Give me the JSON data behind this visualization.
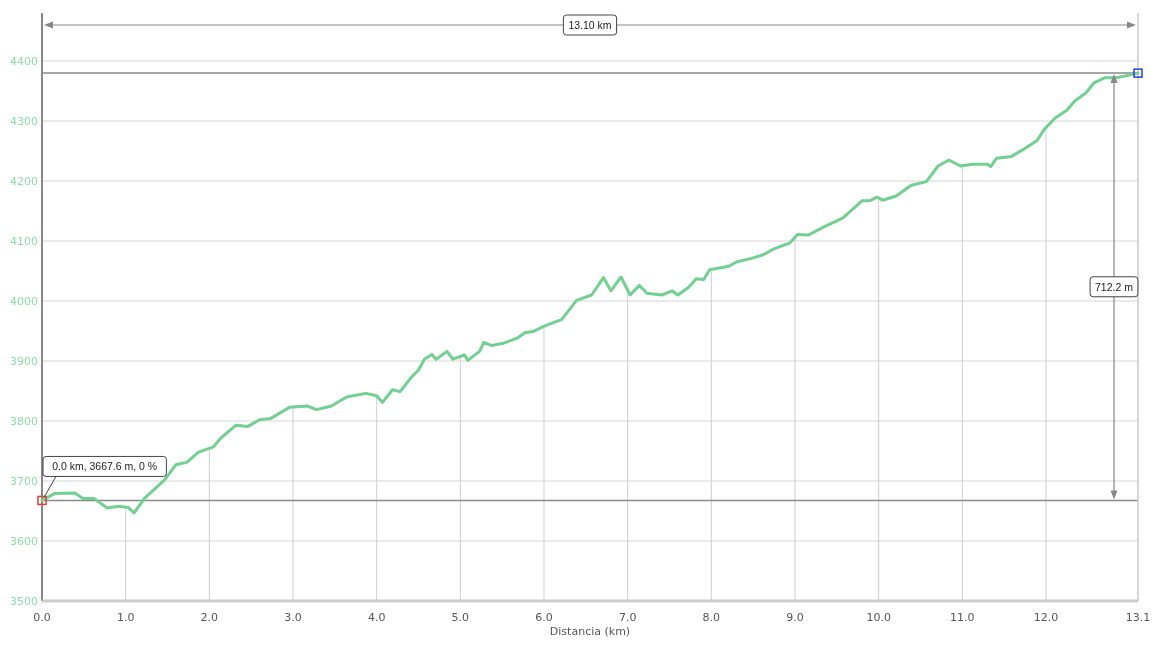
{
  "chart_data": {
    "type": "line",
    "xlabel": "Distancia (km)",
    "xlim": [
      0,
      13.1
    ],
    "ylim": [
      3500,
      4480
    ],
    "xticks": [
      {
        "value": 0,
        "label": "0.0"
      },
      {
        "value": 1,
        "label": "1.0"
      },
      {
        "value": 2,
        "label": "2.0"
      },
      {
        "value": 3,
        "label": "3.0"
      },
      {
        "value": 4,
        "label": "4.0"
      },
      {
        "value": 5,
        "label": "5.0"
      },
      {
        "value": 6,
        "label": "6.0"
      },
      {
        "value": 7,
        "label": "7.0"
      },
      {
        "value": 8,
        "label": "8.0"
      },
      {
        "value": 9,
        "label": "9.0"
      },
      {
        "value": 10,
        "label": "10.0"
      },
      {
        "value": 11,
        "label": "11.0"
      },
      {
        "value": 12,
        "label": "12.0"
      },
      13.1
    ],
    "yticks": [
      3500,
      3600,
      3700,
      3800,
      3900,
      4000,
      4100,
      4200,
      4300,
      4400
    ],
    "grid": true,
    "line_style": "solid",
    "series": [
      {
        "color": "#72d191",
        "x": [
          0,
          0.15,
          0.39,
          0.49,
          0.62,
          0.78,
          0.92,
          1.03,
          1.1,
          1.23,
          1.46,
          1.6,
          1.73,
          1.87,
          2.05,
          2.14,
          2.32,
          2.46,
          2.6,
          2.73,
          2.96,
          3.17,
          3.28,
          3.46,
          3.64,
          3.87,
          4.0,
          4.07,
          4.19,
          4.28,
          4.41,
          4.5,
          4.57,
          4.66,
          4.71,
          4.84,
          4.91,
          5.05,
          5.09,
          5.23,
          5.28,
          5.37,
          5.5,
          5.68,
          5.77,
          5.87,
          6.0,
          6.21,
          6.39,
          6.57,
          6.71,
          6.8,
          6.92,
          7.03,
          7.14,
          7.23,
          7.41,
          7.53,
          7.6,
          7.73,
          7.82,
          7.91,
          7.98,
          8.21,
          8.3,
          8.48,
          8.62,
          8.75,
          8.94,
          9.03,
          9.16,
          9.34,
          9.57,
          9.8,
          9.89,
          9.98,
          10.05,
          10.21,
          10.39,
          10.57,
          10.71,
          10.84,
          10.98,
          11.12,
          11.3,
          11.34,
          11.41,
          11.59,
          11.71,
          11.89,
          11.98,
          12.11,
          12.25,
          12.34,
          12.48,
          12.57,
          12.7,
          12.84,
          12.98,
          13.1
        ],
        "values": [
          3667.6,
          3679,
          3680,
          3671,
          3671,
          3655,
          3658,
          3656,
          3647,
          3672,
          3701,
          3727,
          3731,
          3748,
          3757,
          3772,
          3793,
          3791,
          3802,
          3804,
          3823,
          3825,
          3819,
          3825,
          3840,
          3846,
          3842,
          3831,
          3852,
          3849,
          3872,
          3885,
          3903,
          3911,
          3903,
          3916,
          3903,
          3910,
          3901,
          3916,
          3931,
          3926,
          3929,
          3938,
          3947,
          3949,
          3958,
          3969,
          4001,
          4010,
          4039,
          4017,
          4040,
          4010,
          4026,
          4013,
          4010,
          4017,
          4010,
          4023,
          4037,
          4036,
          4052,
          4058,
          4065,
          4071,
          4077,
          4087,
          4097,
          4111,
          4110,
          4123,
          4138,
          4167,
          4167,
          4173,
          4168,
          4175,
          4193,
          4199,
          4225,
          4235,
          4225,
          4228,
          4228,
          4224,
          4238,
          4241,
          4251,
          4267,
          4286,
          4305,
          4318,
          4333,
          4347,
          4363,
          4372,
          4372,
          4376,
          4379.8
        ]
      },
      {
        "type": "scatter",
        "color": "#e83a3a",
        "marker": "square",
        "x": [
          0
        ],
        "values": [
          3667.6
        ]
      },
      {
        "type": "scatter",
        "color": "#2b3fe0",
        "marker": "square",
        "x": [
          13.1
        ],
        "values": [
          4379.8
        ]
      }
    ],
    "ref_lines": [
      {
        "axis": "y",
        "value": 3667.6,
        "color": "#8a8a8a"
      },
      {
        "axis": "y",
        "value": 4379.8,
        "color": "#8a8a8a"
      }
    ],
    "annotations": [
      "13.10 km",
      "712.2 m",
      {
        "text": "0.0 km, 3667.6 m, 0 %",
        "x": 0,
        "y": 3667.6
      }
    ]
  }
}
